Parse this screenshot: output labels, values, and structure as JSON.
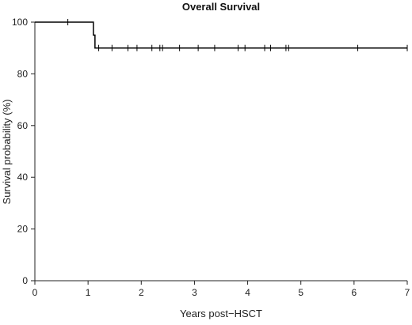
{
  "chart_data": {
    "type": "line",
    "title": "Overall Survival",
    "xlabel": "Years post−HSCT",
    "ylabel": "Survival probability (%)",
    "xlim": [
      0,
      7
    ],
    "ylim": [
      0,
      100
    ],
    "xticks": [
      0,
      1,
      2,
      3,
      4,
      5,
      6,
      7
    ],
    "yticks": [
      0,
      20,
      40,
      60,
      80,
      100
    ],
    "grid": false,
    "series": [
      {
        "style": "step",
        "color": "#000000",
        "x": [
          0,
          1.1,
          1.1,
          1.13,
          1.13,
          7.0
        ],
        "y": [
          100,
          100,
          95,
          95,
          90,
          90
        ]
      }
    ],
    "censor_marks": {
      "x": [
        0.62,
        1.2,
        1.45,
        1.75,
        1.92,
        2.2,
        2.35,
        2.4,
        2.72,
        3.07,
        3.38,
        3.82,
        3.95,
        4.32,
        4.43,
        4.72,
        4.77,
        6.07,
        7.0
      ],
      "y": [
        100,
        90,
        90,
        90,
        90,
        90,
        90,
        90,
        90,
        90,
        90,
        90,
        90,
        90,
        90,
        90,
        90,
        90,
        90
      ]
    }
  }
}
